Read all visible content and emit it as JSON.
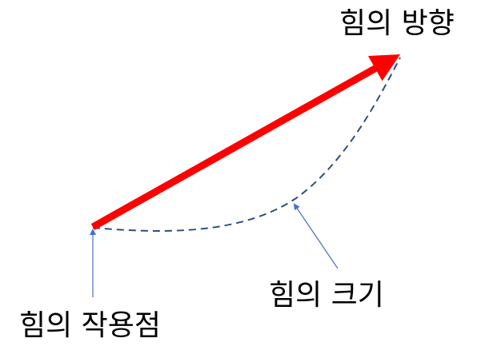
{
  "labels": {
    "direction": "힘의 방향",
    "magnitude": "힘의 크기",
    "application_point": "힘의 작용점"
  },
  "colors": {
    "force_arrow": "#ff0000",
    "magnitude_curve": "#2f4f7f",
    "pointer": "#4472c4",
    "text": "#000000"
  }
}
